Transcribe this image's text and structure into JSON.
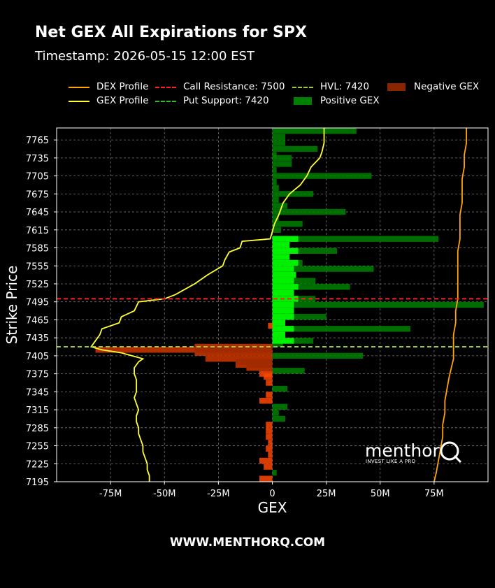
{
  "header": {
    "title": "Net GEX All Expirations for SPX",
    "subtitle": "Timestamp: 2026-05-15 12:00 EST"
  },
  "footer": {
    "text": "WWW.MENTHORQ.COM"
  },
  "watermark": {
    "name": "menthor",
    "tagline": "INVEST LIKE A PRO"
  },
  "legend": {
    "dex": "DEX Profile",
    "gex": "GEX Profile",
    "call_resistance": "Call Resistance: 7500",
    "put_support": "Put Support: 7420",
    "hvl": "HVL: 7420",
    "positive": "Positive GEX",
    "negative": "Negative GEX"
  },
  "colors": {
    "dex_line": "#ffa500",
    "gex_line": "#ffff33",
    "call_resistance": "#ff2020",
    "put_support": "#2bbf2b",
    "hvl": "#9acd32",
    "positive_bar": "#008000",
    "positive_bar_bright": "#00ff00",
    "negative_bar": "#ff4500",
    "negative_bar_dark": "#8b2500"
  },
  "chart_data": {
    "type": "bar",
    "orientation": "horizontal",
    "xlabel": "GEX",
    "ylabel": "Strike Price",
    "xlim": [
      -100,
      100
    ],
    "ylim": [
      7195,
      7785
    ],
    "x_unit": "M",
    "x_ticks": [
      -75,
      -50,
      -25,
      0,
      25,
      50,
      75
    ],
    "x_tick_labels": [
      "-75M",
      "-50M",
      "-25M",
      "0",
      "25M",
      "50M",
      "75M"
    ],
    "y_ticks": [
      7765,
      7735,
      7705,
      7675,
      7645,
      7615,
      7585,
      7555,
      7525,
      7495,
      7465,
      7435,
      7405,
      7375,
      7345,
      7315,
      7285,
      7255,
      7225,
      7195
    ],
    "grid": true,
    "bars": [
      {
        "strike": 7780,
        "value": 39
      },
      {
        "strike": 7770,
        "value": 6
      },
      {
        "strike": 7760,
        "value": 6
      },
      {
        "strike": 7750,
        "value": 21
      },
      {
        "strike": 7740,
        "value": 2
      },
      {
        "strike": 7735,
        "value": 9
      },
      {
        "strike": 7725,
        "value": 9
      },
      {
        "strike": 7715,
        "value": 2
      },
      {
        "strike": 7705,
        "value": 46
      },
      {
        "strike": 7695,
        "value": 2
      },
      {
        "strike": 7685,
        "value": 3
      },
      {
        "strike": 7675,
        "value": 19
      },
      {
        "strike": 7665,
        "value": 3
      },
      {
        "strike": 7655,
        "value": 7
      },
      {
        "strike": 7645,
        "value": 34
      },
      {
        "strike": 7635,
        "value": 3
      },
      {
        "strike": 7625,
        "value": 14
      },
      {
        "strike": 7615,
        "value": 4
      },
      {
        "strike": 7600,
        "value": 77
      },
      {
        "strike": 7590,
        "value": 8
      },
      {
        "strike": 7580,
        "value": 30
      },
      {
        "strike": 7570,
        "value": 8
      },
      {
        "strike": 7560,
        "value": 14
      },
      {
        "strike": 7550,
        "value": 47
      },
      {
        "strike": 7540,
        "value": 11
      },
      {
        "strike": 7530,
        "value": 20
      },
      {
        "strike": 7520,
        "value": 36
      },
      {
        "strike": 7510,
        "value": 10
      },
      {
        "strike": 7500,
        "value": 20
      },
      {
        "strike": 7490,
        "value": 98
      },
      {
        "strike": 7480,
        "value": 10
      },
      {
        "strike": 7470,
        "value": 25
      },
      {
        "strike": 7460,
        "value": 6
      },
      {
        "strike": 7455,
        "value": -2
      },
      {
        "strike": 7450,
        "value": 64
      },
      {
        "strike": 7440,
        "value": 6
      },
      {
        "strike": 7430,
        "value": 19
      },
      {
        "strike": 7425,
        "value": 5
      },
      {
        "strike": 7420,
        "value": -36
      },
      {
        "strike": 7415,
        "value": -82
      },
      {
        "strike": 7410,
        "value": -36
      },
      {
        "strike": 7405,
        "value": 42
      },
      {
        "strike": 7400,
        "value": -31
      },
      {
        "strike": 7395,
        "value": -17
      },
      {
        "strike": 7390,
        "value": -17
      },
      {
        "strike": 7385,
        "value": -12
      },
      {
        "strike": 7380,
        "value": 15
      },
      {
        "strike": 7375,
        "value": -6
      },
      {
        "strike": 7370,
        "value": -4
      },
      {
        "strike": 7360,
        "value": -3
      },
      {
        "strike": 7350,
        "value": 7
      },
      {
        "strike": 7340,
        "value": -3
      },
      {
        "strike": 7330,
        "value": -6
      },
      {
        "strike": 7320,
        "value": 7
      },
      {
        "strike": 7310,
        "value": 3
      },
      {
        "strike": 7300,
        "value": 6
      },
      {
        "strike": 7290,
        "value": -3
      },
      {
        "strike": 7280,
        "value": -3
      },
      {
        "strike": 7270,
        "value": -3
      },
      {
        "strike": 7260,
        "value": -2
      },
      {
        "strike": 7250,
        "value": -3
      },
      {
        "strike": 7240,
        "value": -2
      },
      {
        "strike": 7230,
        "value": -6
      },
      {
        "strike": 7220,
        "value": -4
      },
      {
        "strike": 7210,
        "value": 2
      },
      {
        "strike": 7200,
        "value": -6
      }
    ],
    "series": [
      {
        "name": "GEX Profile",
        "points": [
          [
            24,
            7785
          ],
          [
            24,
            7760
          ],
          [
            23,
            7745
          ],
          [
            22,
            7735
          ],
          [
            18,
            7720
          ],
          [
            16,
            7705
          ],
          [
            13,
            7690
          ],
          [
            8,
            7675
          ],
          [
            5,
            7660
          ],
          [
            3,
            7640
          ],
          [
            1,
            7625
          ],
          [
            0,
            7612
          ],
          [
            -1,
            7600
          ],
          [
            -14,
            7596
          ],
          [
            -15,
            7585
          ],
          [
            -20,
            7578
          ],
          [
            -22,
            7565
          ],
          [
            -23,
            7555
          ],
          [
            -30,
            7540
          ],
          [
            -36,
            7525
          ],
          [
            -41,
            7515
          ],
          [
            -45,
            7507
          ],
          [
            -50,
            7500
          ],
          [
            -62,
            7495
          ],
          [
            -64,
            7480
          ],
          [
            -70,
            7470
          ],
          [
            -71,
            7460
          ],
          [
            -79,
            7450
          ],
          [
            -80,
            7440
          ],
          [
            -82,
            7430
          ],
          [
            -84,
            7420
          ],
          [
            -79,
            7415
          ],
          [
            -70,
            7410
          ],
          [
            -65,
            7405
          ],
          [
            -60,
            7400
          ],
          [
            -62,
            7395
          ],
          [
            -63,
            7390
          ],
          [
            -64,
            7385
          ],
          [
            -64,
            7375
          ],
          [
            -63,
            7365
          ],
          [
            -63,
            7355
          ],
          [
            -63,
            7345
          ],
          [
            -64,
            7335
          ],
          [
            -63,
            7325
          ],
          [
            -62,
            7315
          ],
          [
            -63,
            7305
          ],
          [
            -63,
            7295
          ],
          [
            -62,
            7285
          ],
          [
            -62,
            7275
          ],
          [
            -61,
            7265
          ],
          [
            -60,
            7255
          ],
          [
            -60,
            7245
          ],
          [
            -59,
            7235
          ],
          [
            -58,
            7225
          ],
          [
            -58,
            7215
          ],
          [
            -57,
            7205
          ],
          [
            -57,
            7195
          ]
        ]
      },
      {
        "name": "DEX Profile",
        "points": [
          [
            90,
            7785
          ],
          [
            90,
            7760
          ],
          [
            89,
            7740
          ],
          [
            89,
            7720
          ],
          [
            88,
            7700
          ],
          [
            88,
            7680
          ],
          [
            88,
            7660
          ],
          [
            87,
            7640
          ],
          [
            87,
            7620
          ],
          [
            87,
            7600
          ],
          [
            86,
            7580
          ],
          [
            86,
            7560
          ],
          [
            86,
            7540
          ],
          [
            86,
            7520
          ],
          [
            86,
            7500
          ],
          [
            85,
            7480
          ],
          [
            85,
            7460
          ],
          [
            84,
            7440
          ],
          [
            84,
            7420
          ],
          [
            84,
            7400
          ],
          [
            83,
            7385
          ],
          [
            82,
            7370
          ],
          [
            81,
            7350
          ],
          [
            80,
            7330
          ],
          [
            80,
            7310
          ],
          [
            79,
            7290
          ],
          [
            79,
            7270
          ],
          [
            78,
            7250
          ],
          [
            77,
            7230
          ],
          [
            76,
            7210
          ],
          [
            75,
            7195
          ]
        ]
      }
    ],
    "hlines": [
      {
        "name": "Call Resistance: 7500",
        "y": 7500,
        "style": "dashed"
      },
      {
        "name": "Put Support: 7420",
        "y": 7420,
        "style": "dashed"
      },
      {
        "name": "HVL: 7420",
        "y": 7420,
        "style": "dashed"
      }
    ]
  }
}
